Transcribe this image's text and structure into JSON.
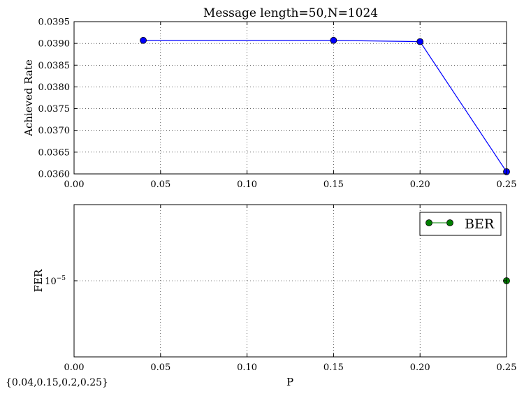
{
  "chart_data": [
    {
      "type": "line",
      "title": "Message length=50,N=1024",
      "xlabel": "",
      "ylabel": "Achieved Rate",
      "xlim": [
        0.0,
        0.25
      ],
      "ylim": [
        0.036,
        0.0395
      ],
      "xticks": [
        "0.00",
        "0.05",
        "0.10",
        "0.15",
        "0.20",
        "0.25"
      ],
      "yticks": [
        "0.0360",
        "0.0365",
        "0.0370",
        "0.0375",
        "0.0380",
        "0.0385",
        "0.0390",
        "0.0395"
      ],
      "grid": true,
      "series": [
        {
          "color": "#0000ff",
          "marker": "circle",
          "x": [
            0.04,
            0.15,
            0.2,
            0.25
          ],
          "y": [
            0.03907,
            0.03907,
            0.03904,
            0.03605
          ]
        }
      ]
    },
    {
      "type": "line",
      "title": "",
      "xlabel": "P",
      "ylabel": "FER",
      "xlim": [
        0.0,
        0.25
      ],
      "yscale": "log",
      "ytick_values": [
        1e-05
      ],
      "ytick_base": "10",
      "ytick_exp": "−5",
      "xticks": [
        "0.00",
        "0.05",
        "0.10",
        "0.15",
        "0.20",
        "0.25"
      ],
      "grid": true,
      "legend_position": "top-right",
      "series": [
        {
          "name": "BER",
          "color": "#007f00",
          "marker": "circle",
          "x": [
            0.25
          ],
          "y": [
            1e-05
          ]
        }
      ]
    }
  ],
  "footer_text": "{0.04,0.15,0.2,0.25}"
}
